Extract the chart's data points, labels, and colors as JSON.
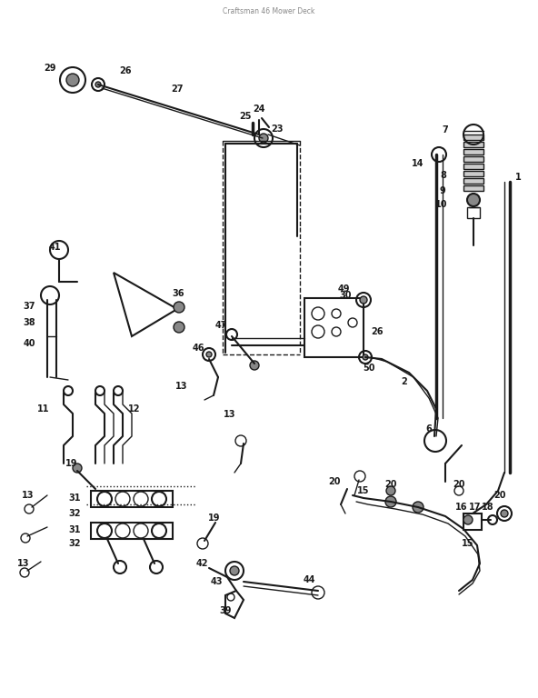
{
  "bg_color": "#ffffff",
  "line_color": "#1a1a1a",
  "figsize": [
    5.92,
    7.68
  ],
  "dpi": 100
}
